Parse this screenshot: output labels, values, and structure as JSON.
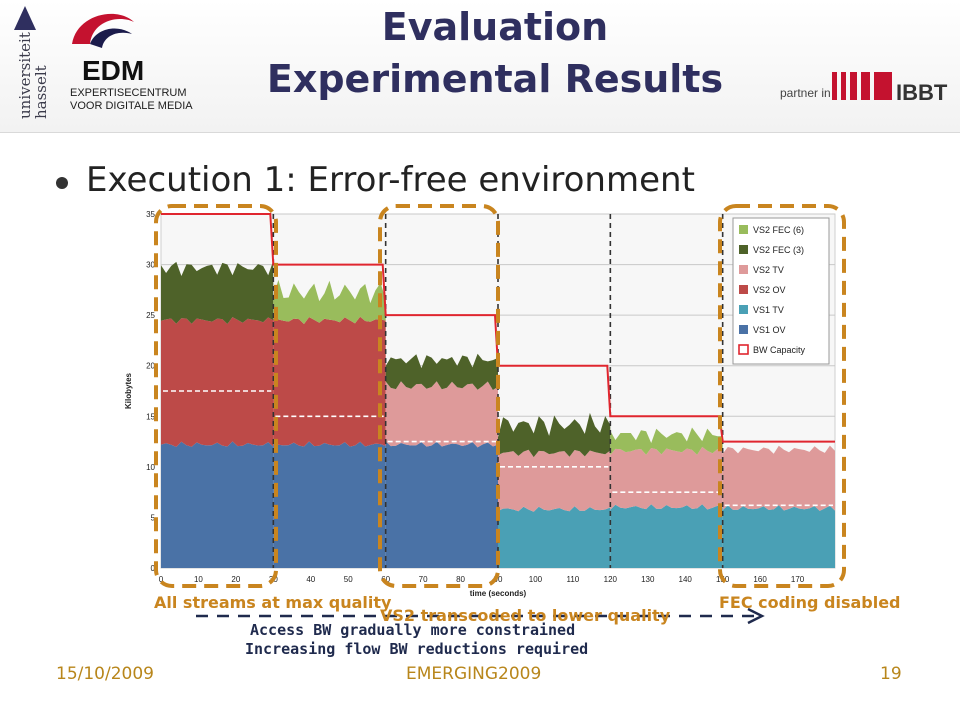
{
  "slide": {
    "title_line1": "Evaluation",
    "title_line2": "Experimental Results",
    "bullet": "Execution 1: Error-free environment",
    "footer_date": "15/10/2009",
    "footer_event": "EMERGING2009",
    "page_number": "19"
  },
  "logos": {
    "university_text": "universiteit hasselt",
    "edm_big": "EDM",
    "edm_line1": "EXPERTISECENTRUM",
    "edm_line2": "VOOR DIGITALE MEDIA",
    "partner_text": "partner in",
    "ibbt_text": "IBBT"
  },
  "annotations": {
    "all_streams": "All streams at max quality",
    "vs2_transcoded": "VS2 transcoded to lower quality",
    "fec_disabled": "FEC coding disabled",
    "access_bw": "Access BW gradually more constrained",
    "increasing_flow": "Increasing flow BW reductions required"
  },
  "colors": {
    "vs1_ov": "#4a72a6",
    "vs1_tv": "#4aa0b5",
    "vs2_ov": "#bd4a48",
    "vs2_tv": "#de9a9a",
    "vs2_fec3": "#4e6229",
    "vs2_fec6": "#99bc5c",
    "bw_capacity": "#e0262f",
    "highlight": "#c9851f"
  },
  "chart_data": {
    "type": "area",
    "xlabel": "time (seconds)",
    "ylabel": "Kilobytes",
    "xlim": [
      0,
      180
    ],
    "ylim": [
      0,
      35
    ],
    "xticks": [
      0,
      10,
      20,
      30,
      40,
      50,
      60,
      70,
      80,
      90,
      100,
      110,
      120,
      130,
      140,
      150,
      160,
      170
    ],
    "yticks": [
      0,
      5,
      10,
      15,
      20,
      25,
      30,
      35
    ],
    "grid": true,
    "legend_position": "top-right",
    "legend": [
      "VS2 FEC (6)",
      "VS2 FEC (3)",
      "VS2 TV",
      "VS2 OV",
      "VS1 TV",
      "VS1 OV",
      "BW Capacity"
    ],
    "phases": [
      {
        "start": 0,
        "end": 30,
        "bw_capacity": 35,
        "vs1_ov": 12.2,
        "vs1_tv": 0,
        "vs2_ov": 12.3,
        "vs2_tv": 0,
        "vs2_fec3": 5.2,
        "vs2_fec6": 0,
        "dashed_level": 17.5
      },
      {
        "start": 30,
        "end": 60,
        "bw_capacity": 30,
        "vs1_ov": 12.2,
        "vs1_tv": 0,
        "vs2_ov": 12.3,
        "vs2_tv": 0,
        "vs2_fec3": 0,
        "vs2_fec6": 2.8,
        "dashed_level": 15
      },
      {
        "start": 60,
        "end": 90,
        "bw_capacity": 25,
        "vs1_ov": 12.2,
        "vs1_tv": 0,
        "vs2_ov": 0,
        "vs2_tv": 5.8,
        "vs2_fec3": 2.6,
        "vs2_fec6": 0,
        "dashed_level": 12.5
      },
      {
        "start": 90,
        "end": 120,
        "bw_capacity": 20,
        "vs1_ov": 0,
        "vs1_tv": 5.8,
        "vs2_ov": 0,
        "vs2_tv": 5.6,
        "vs2_fec3": 2.8,
        "vs2_fec6": 0,
        "dashed_level": 10
      },
      {
        "start": 120,
        "end": 150,
        "bw_capacity": 15,
        "vs1_ov": 0,
        "vs1_tv": 6.0,
        "vs2_ov": 0,
        "vs2_tv": 5.6,
        "vs2_fec3": 0,
        "vs2_fec6": 1.6,
        "dashed_level": 7.5
      },
      {
        "start": 150,
        "end": 180,
        "bw_capacity": 12.5,
        "vs1_ov": 0,
        "vs1_tv": 5.9,
        "vs2_ov": 0,
        "vs2_tv": 5.8,
        "vs2_fec3": 0,
        "vs2_fec6": 0,
        "dashed_level": 6.2
      }
    ],
    "phase_boundaries": [
      30,
      60,
      90,
      120,
      150
    ]
  }
}
